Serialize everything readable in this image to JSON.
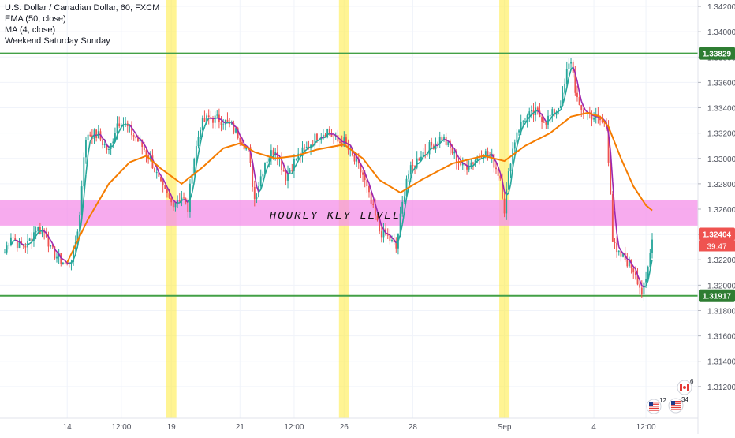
{
  "legend": {
    "title": "U.S. Dollar / Canadian Dollar, 60, FXCM",
    "ema": "EMA (50, close)",
    "ma": "MA (4, close)",
    "weekend": "Weekend Saturday Sunday"
  },
  "annotation": "HOURLY KEY LEVEL",
  "price_badges": {
    "upper_level": "1.33829",
    "current_price": "1.32404",
    "countdown": "39:47",
    "lower_level": "1.31917"
  },
  "colors": {
    "up": "#26a69a",
    "down": "#ef5350",
    "ema": "#f57c00",
    "ma": "#9c27b0",
    "level_line": "#43a047",
    "key_zone": "#f48fe8",
    "weekend": "#ffeb3b",
    "badge_green": "#2e7d32",
    "badge_red": "#ef5350",
    "axis_text": "#50535e"
  },
  "event_icons": [
    "us-flag-icon",
    "canada-flag-icon",
    "us-flag-icon"
  ],
  "event_labels": [
    "12",
    "6",
    "34"
  ],
  "chart_data": {
    "type": "line",
    "ylim": [
      1.3095,
      1.3425
    ],
    "y_ticks": [
      "1.34200",
      "1.34000",
      "1.33800",
      "1.33600",
      "1.33400",
      "1.33200",
      "1.33000",
      "1.32800",
      "1.32600",
      "1.32400",
      "1.32200",
      "1.32000",
      "1.31800",
      "1.31600",
      "1.31400",
      "1.31200"
    ],
    "y_tick_values": [
      1.342,
      1.34,
      1.338,
      1.336,
      1.334,
      1.332,
      1.33,
      1.328,
      1.326,
      1.324,
      1.322,
      1.32,
      1.318,
      1.316,
      1.314,
      1.312
    ],
    "x_ticks": [
      "14",
      "12:00",
      "19",
      "21",
      "12:00",
      "26",
      "28",
      "Sep",
      "4",
      "12:00"
    ],
    "x_tick_bar": [
      30,
      56,
      80,
      113,
      139,
      163,
      196,
      240,
      283,
      308
    ],
    "weekend_bars": [
      80,
      163,
      240
    ],
    "key_level_zone": [
      1.3247,
      1.3267
    ],
    "horizontal_levels": [
      1.33829,
      1.31917
    ],
    "current_price": 1.32404,
    "close_path": [
      [
        0,
        1.3226
      ],
      [
        3,
        1.324
      ],
      [
        7,
        1.3231
      ],
      [
        11,
        1.3232
      ],
      [
        15,
        1.3245
      ],
      [
        20,
        1.3241
      ],
      [
        22,
        1.3228
      ],
      [
        26,
        1.3221
      ],
      [
        30,
        1.3216
      ],
      [
        33,
        1.3224
      ],
      [
        36,
        1.3255
      ],
      [
        38,
        1.3304
      ],
      [
        40,
        1.332
      ],
      [
        45,
        1.3318
      ],
      [
        50,
        1.3305
      ],
      [
        54,
        1.3328
      ],
      [
        56,
        1.333
      ],
      [
        60,
        1.3322
      ],
      [
        65,
        1.3312
      ],
      [
        70,
        1.33
      ],
      [
        75,
        1.3278
      ],
      [
        80,
        1.3265
      ],
      [
        85,
        1.327
      ],
      [
        88,
        1.326
      ],
      [
        90,
        1.3292
      ],
      [
        94,
        1.3326
      ],
      [
        98,
        1.3332
      ],
      [
        105,
        1.333
      ],
      [
        110,
        1.3323
      ],
      [
        113,
        1.3317
      ],
      [
        117,
        1.3306
      ],
      [
        120,
        1.3268
      ],
      [
        125,
        1.3298
      ],
      [
        130,
        1.3308
      ],
      [
        135,
        1.3286
      ],
      [
        140,
        1.33
      ],
      [
        145,
        1.3308
      ],
      [
        150,
        1.3318
      ],
      [
        155,
        1.3322
      ],
      [
        160,
        1.3313
      ],
      [
        163,
        1.3313
      ],
      [
        168,
        1.3298
      ],
      [
        172,
        1.3287
      ],
      [
        176,
        1.3264
      ],
      [
        180,
        1.3243
      ],
      [
        184,
        1.3238
      ],
      [
        188,
        1.3229
      ],
      [
        190,
        1.3253
      ],
      [
        193,
        1.3285
      ],
      [
        196,
        1.3293
      ],
      [
        200,
        1.3304
      ],
      [
        205,
        1.331
      ],
      [
        210,
        1.3317
      ],
      [
        215,
        1.3305
      ],
      [
        220,
        1.3293
      ],
      [
        225,
        1.3298
      ],
      [
        230,
        1.3305
      ],
      [
        234,
        1.33
      ],
      [
        238,
        1.3285
      ],
      [
        240,
        1.326
      ],
      [
        243,
        1.33
      ],
      [
        246,
        1.3322
      ],
      [
        250,
        1.3332
      ],
      [
        255,
        1.3336
      ],
      [
        260,
        1.333
      ],
      [
        265,
        1.3338
      ],
      [
        268,
        1.3348
      ],
      [
        270,
        1.3368
      ],
      [
        272,
        1.3378
      ],
      [
        274,
        1.3355
      ],
      [
        276,
        1.3338
      ],
      [
        280,
        1.3336
      ],
      [
        283,
        1.3333
      ],
      [
        286,
        1.333
      ],
      [
        289,
        1.3326
      ],
      [
        291,
        1.3275
      ],
      [
        292,
        1.3235
      ],
      [
        294,
        1.3224
      ],
      [
        297,
        1.3222
      ],
      [
        300,
        1.3217
      ],
      [
        303,
        1.321
      ],
      [
        306,
        1.3194
      ],
      [
        308,
        1.3202
      ],
      [
        310,
        1.3225
      ],
      [
        311,
        1.324
      ]
    ],
    "ema_path": [
      [
        30,
        1.3218
      ],
      [
        40,
        1.3252
      ],
      [
        50,
        1.328
      ],
      [
        60,
        1.3297
      ],
      [
        68,
        1.3302
      ],
      [
        75,
        1.3292
      ],
      [
        85,
        1.328
      ],
      [
        95,
        1.3293
      ],
      [
        105,
        1.3308
      ],
      [
        113,
        1.3312
      ],
      [
        120,
        1.3305
      ],
      [
        130,
        1.33
      ],
      [
        140,
        1.3302
      ],
      [
        150,
        1.3307
      ],
      [
        163,
        1.3311
      ],
      [
        172,
        1.33
      ],
      [
        180,
        1.3283
      ],
      [
        190,
        1.3273
      ],
      [
        200,
        1.3283
      ],
      [
        215,
        1.3296
      ],
      [
        230,
        1.3302
      ],
      [
        240,
        1.3298
      ],
      [
        250,
        1.331
      ],
      [
        262,
        1.332
      ],
      [
        272,
        1.3333
      ],
      [
        280,
        1.3336
      ],
      [
        286,
        1.3333
      ],
      [
        290,
        1.3325
      ],
      [
        296,
        1.33
      ],
      [
        302,
        1.3278
      ],
      [
        308,
        1.3263
      ],
      [
        311,
        1.3259
      ]
    ]
  }
}
